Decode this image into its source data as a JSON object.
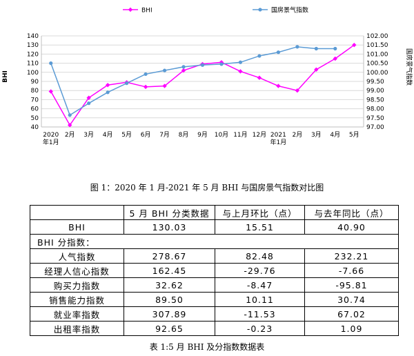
{
  "chart_data": {
    "type": "line",
    "categories": [
      "2020\n年1月",
      "2月",
      "3月",
      "4月",
      "5月",
      "6月",
      "7月",
      "8月",
      "9月",
      "10月",
      "11月",
      "12月",
      "2021\n年1月",
      "2月",
      "3月",
      "4月",
      "5月"
    ],
    "series": [
      {
        "name": "BHI",
        "axis": "left",
        "color": "#ff00ff",
        "marker": "diamond",
        "values": [
          79,
          42,
          72,
          86,
          89,
          84,
          85,
          102,
          109,
          111,
          101,
          94,
          85,
          80,
          103,
          115,
          130
        ]
      },
      {
        "name": "国房景气指数",
        "axis": "right",
        "color": "#5b9bd5",
        "marker": "circle",
        "values": [
          100.5,
          97.65,
          98.3,
          98.9,
          99.4,
          99.9,
          100.1,
          100.3,
          100.4,
          100.45,
          100.55,
          100.9,
          101.1,
          101.4,
          101.3,
          101.3,
          null
        ]
      }
    ],
    "y_left": {
      "min": 40,
      "max": 140,
      "step": 10,
      "ticks": [
        "40",
        "50",
        "60",
        "70",
        "80",
        "90",
        "100",
        "110",
        "120",
        "130",
        "140"
      ]
    },
    "y_right": {
      "min": 97.0,
      "max": 102.0,
      "step": 0.5,
      "ticks": [
        "97.00",
        "97.50",
        "98.00",
        "98.50",
        "99.00",
        "99.50",
        "100.00",
        "100.50",
        "101.00",
        "101.50",
        "102.00"
      ]
    },
    "ylabel_left": "BHI",
    "ylabel_right": "国房景气指数",
    "grid": true,
    "legend_position": "top"
  },
  "captions": {
    "figure": "图 1：2020 年 1 月-2021 年 5 月 BHI 与国房景气指数对比图",
    "table": "表 1:5 月 BHI 及分指数数据表"
  },
  "table": {
    "headers": [
      "",
      "5 月 BHI 分类数据",
      "与上月环比（点）",
      "与去年同比（点）"
    ],
    "rows": [
      {
        "label": "BHI",
        "values": [
          "130.03",
          "15.51",
          "40.90"
        ]
      },
      {
        "section": "BHI 分指数："
      },
      {
        "label": "人气指数",
        "values": [
          "278.67",
          "82.48",
          "232.21"
        ]
      },
      {
        "label": "经理人信心指数",
        "values": [
          "162.45",
          "-29.76",
          "-7.66"
        ]
      },
      {
        "label": "购买力指数",
        "values": [
          "32.62",
          "-8.47",
          "-95.81"
        ]
      },
      {
        "label": "销售能力指数",
        "values": [
          "89.50",
          "10.11",
          "30.74"
        ]
      },
      {
        "label": "就业率指数",
        "values": [
          "307.89",
          "-11.53",
          "67.02"
        ]
      },
      {
        "label": "出租率指数",
        "values": [
          "92.65",
          "-0.23",
          "1.09"
        ]
      }
    ]
  }
}
